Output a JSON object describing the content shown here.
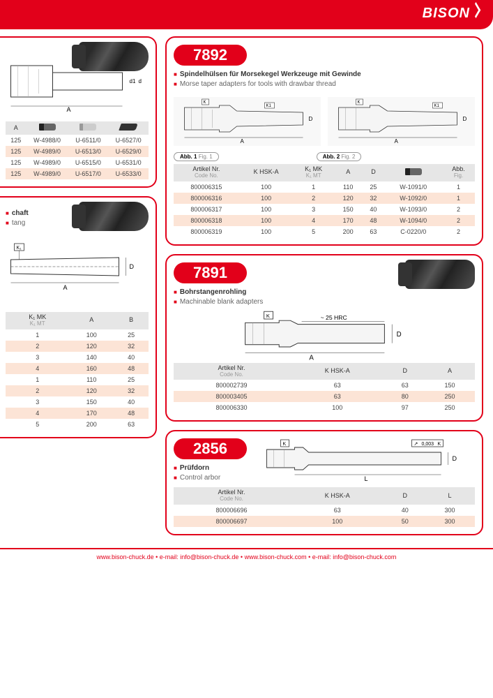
{
  "brand": "BISON",
  "colors": {
    "accent": "#e2001a",
    "row_alt": "#fce4d6",
    "header_bg": "#e6e6e6"
  },
  "footer": {
    "text": "www.bison-chuck.de  •  e-mail: info@bison-chuck.de  •  www.bison-chuck.com  •  e-mail: info@bison-chuck.com"
  },
  "left_top": {
    "table": {
      "columns": [
        "A",
        "screw",
        "pin",
        "key"
      ],
      "rows": [
        [
          "125",
          "W-4988/0",
          "U-6511/0",
          "U-6527/0"
        ],
        [
          "125",
          "W-4989/0",
          "U-6513/0",
          "U-6529/0"
        ],
        [
          "125",
          "W-4989/0",
          "U-6515/0",
          "U-6531/0"
        ],
        [
          "125",
          "W-4989/0",
          "U-6517/0",
          "U-6533/0"
        ]
      ]
    },
    "diagram_label_A": "A",
    "diagram_label_d1": "d1",
    "diagram_label_d": "d"
  },
  "left_mid": {
    "subtitle_de_partial": "chaft",
    "subtitle_en_partial": "tang",
    "diagram_label_K1": "K₁",
    "diagram_label_A": "A",
    "diagram_label_D": "D",
    "table": {
      "columns": [
        {
          "de": "K₁ MK",
          "en": "K₁ MT"
        },
        {
          "de": "A",
          "en": ""
        },
        {
          "de": "B",
          "en": ""
        }
      ],
      "rows": [
        [
          "1",
          "100",
          "25"
        ],
        [
          "2",
          "120",
          "32"
        ],
        [
          "3",
          "140",
          "40"
        ],
        [
          "4",
          "160",
          "48"
        ],
        [
          "1",
          "110",
          "25"
        ],
        [
          "2",
          "120",
          "32"
        ],
        [
          "3",
          "150",
          "40"
        ],
        [
          "4",
          "170",
          "48"
        ],
        [
          "5",
          "200",
          "63"
        ]
      ]
    }
  },
  "p7892": {
    "code": "7892",
    "title_de": "Spindelhülsen für Morsekegel Werkzeuge mit Gewinde",
    "title_en": "Morse taper adapters for tools with drawbar thread",
    "fig1": {
      "bold": "Abb. 1",
      "light": "Fig. 1"
    },
    "fig2": {
      "bold": "Abb. 2",
      "light": "Fig. 2"
    },
    "diagram_labels": {
      "K": "K",
      "K1": "K1",
      "A": "A",
      "D": "D"
    },
    "table": {
      "columns": [
        {
          "de": "Artikel Nr.",
          "en": "Code No."
        },
        {
          "de": "K HSK-A",
          "en": ""
        },
        {
          "de": "K₁ MK",
          "en": "K₁ MT"
        },
        {
          "de": "A",
          "en": ""
        },
        {
          "de": "D",
          "en": ""
        },
        {
          "de": "screw",
          "en": ""
        },
        {
          "de": "Abb.",
          "en": "Fig."
        }
      ],
      "rows": [
        [
          "800006315",
          "100",
          "1",
          "110",
          "25",
          "W-1091/0",
          "1"
        ],
        [
          "800006316",
          "100",
          "2",
          "120",
          "32",
          "W-1092/0",
          "1"
        ],
        [
          "800006317",
          "100",
          "3",
          "150",
          "40",
          "W-1093/0",
          "2"
        ],
        [
          "800006318",
          "100",
          "4",
          "170",
          "48",
          "W-1094/0",
          "2"
        ],
        [
          "800006319",
          "100",
          "5",
          "200",
          "63",
          "C-0220/0",
          "2"
        ]
      ]
    }
  },
  "p7891": {
    "code": "7891",
    "title_de": "Bohrstangenrohling",
    "title_en": "Machinable blank adapters",
    "diagram_labels": {
      "K": "K",
      "hrc": "~ 25 HRC",
      "A": "A",
      "D": "D"
    },
    "table": {
      "columns": [
        {
          "de": "Artikel Nr.",
          "en": "Code No."
        },
        {
          "de": "K HSK-A",
          "en": ""
        },
        {
          "de": "D",
          "en": ""
        },
        {
          "de": "A",
          "en": ""
        }
      ],
      "rows": [
        [
          "800002739",
          "63",
          "63",
          "150"
        ],
        [
          "800003405",
          "63",
          "80",
          "250"
        ],
        [
          "800006330",
          "100",
          "97",
          "250"
        ]
      ]
    }
  },
  "p2856": {
    "code": "2856",
    "title_de": "Prüfdorn",
    "title_en": "Control arbor",
    "diagram_labels": {
      "K": "K",
      "tol": "0,003",
      "tol_ref": "K",
      "L": "L",
      "D": "D"
    },
    "table": {
      "columns": [
        {
          "de": "Artikel Nr.",
          "en": "Code No."
        },
        {
          "de": "K HSK-A",
          "en": ""
        },
        {
          "de": "D",
          "en": ""
        },
        {
          "de": "L",
          "en": ""
        }
      ],
      "rows": [
        [
          "800006696",
          "63",
          "40",
          "300"
        ],
        [
          "800006697",
          "100",
          "50",
          "300"
        ]
      ]
    }
  }
}
